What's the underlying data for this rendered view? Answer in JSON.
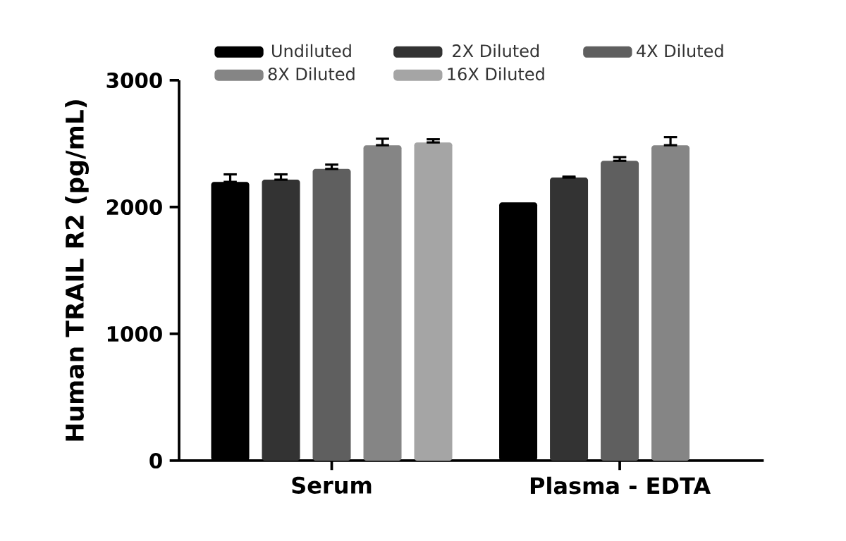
{
  "chart_data": {
    "type": "bar",
    "ylabel": "Human TRAIL R2 (pg/mL)",
    "categories": [
      "Serum",
      "Plasma - EDTA"
    ],
    "series": [
      {
        "name": "Undiluted",
        "color": "#000000",
        "values": [
          2199,
          2037
        ],
        "errors": [
          [
            2199,
            2258
          ],
          null
        ]
      },
      {
        "name": "2X Diluted",
        "color": "#333333",
        "values": [
          2216,
          2233
        ],
        "errors": [
          [
            2216,
            2258
          ],
          [
            2233,
            2240
          ]
        ]
      },
      {
        "name": "4X Diluted",
        "color": "#5f5f5f",
        "values": [
          2301,
          2365
        ],
        "errors": [
          [
            2301,
            2335
          ],
          [
            2365,
            2394
          ]
        ]
      },
      {
        "name": "8X Diluted",
        "color": "#858585",
        "values": [
          2488,
          2488
        ],
        "errors": [
          [
            2488,
            2539
          ],
          [
            2488,
            2552
          ]
        ]
      },
      {
        "name": "16X Diluted",
        "color": "#a5a5a5",
        "values": [
          2510,
          null
        ],
        "errors": [
          [
            2510,
            2535
          ],
          null
        ]
      }
    ],
    "ylim": [
      0,
      3000
    ],
    "yticks": [
      0,
      1000,
      2000,
      3000
    ],
    "legend": "top"
  }
}
